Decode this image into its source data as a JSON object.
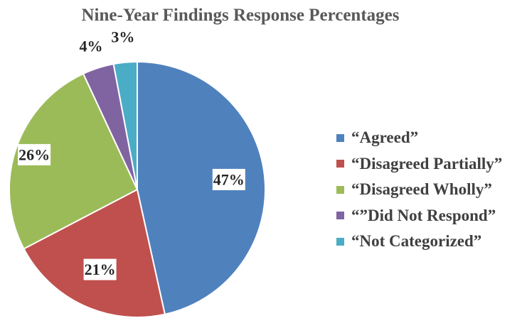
{
  "chart_data": {
    "type": "pie",
    "title": "Nine-Year Findings Response Percentages",
    "categories": [
      "“Agreed”",
      "“Disagreed Partially”",
      "“Disagreed Wholly”",
      "“”Did Not Respond”",
      "“Not Categorized”"
    ],
    "values": [
      47,
      21,
      26,
      4,
      3
    ],
    "labels": [
      "47%",
      "21%",
      "26%",
      "4%",
      "3%"
    ],
    "colors": [
      "#4f81bd",
      "#c0504d",
      "#9bbb59",
      "#8064a2",
      "#4bacc6"
    ],
    "legend_position": "right"
  }
}
